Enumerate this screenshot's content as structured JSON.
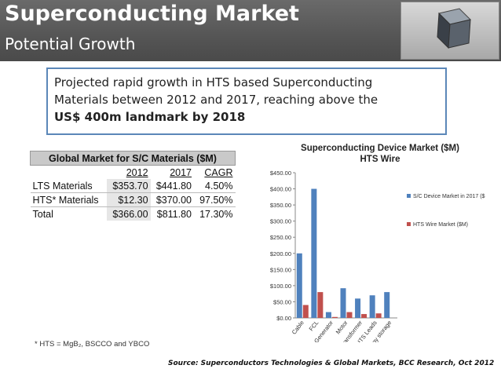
{
  "header": {
    "title": "Superconducting Market",
    "subtitle": "Potential Growth"
  },
  "callout": {
    "line1": "Projected rapid growth in HTS based Superconducting",
    "line2": "Materials between 2012 and 2017, reaching above the",
    "line3_bold": "US$ 400m landmark by 2018"
  },
  "table": {
    "title": "Global Market for S/C Materials  ($M)",
    "columns": [
      "2012",
      "2017",
      "CAGR"
    ],
    "rows": [
      {
        "label": "LTS Materials",
        "v2012": "$353.70",
        "v2017": "$441.80",
        "cagr": "4.50%"
      },
      {
        "label": "HTS* Materials",
        "v2012": "$12.30",
        "v2017": "$370.00",
        "cagr": "97.50%"
      },
      {
        "label": "Total",
        "v2012": "$366.00",
        "v2017": "$811.80",
        "cagr": "17.30%"
      }
    ]
  },
  "footnote": "* HTS = MgB₂, BSCCO and YBCO",
  "source": "Source: Superconductors Technologies & Global Markets, BCC Research, Oct 2012",
  "colors": {
    "series1": "#4f81bd",
    "series2": "#c0504d"
  },
  "chart_data": {
    "type": "bar",
    "title": "Superconducting Device Market ($M)",
    "subtitle": "HTS Wire",
    "categories": [
      "Cable",
      "FCL",
      "Generator",
      "Motor",
      "Transformer",
      "HTS Leads",
      "Energy storage"
    ],
    "series": [
      {
        "name": "S/C Device Market in 2017 ($M)",
        "values": [
          200,
          400,
          18,
          92,
          60,
          70,
          80
        ]
      },
      {
        "name": "HTS Wire Market ($M)",
        "values": [
          40,
          80,
          3,
          18,
          12,
          14,
          0
        ]
      }
    ],
    "ylim": [
      0,
      450
    ],
    "yticks": [
      "$0.00",
      "$50.00",
      "$100.00",
      "$150.00",
      "$200.00",
      "$250.00",
      "$300.00",
      "$350.00",
      "$400.00",
      "$450.00"
    ],
    "legend": "right",
    "grid": false
  }
}
